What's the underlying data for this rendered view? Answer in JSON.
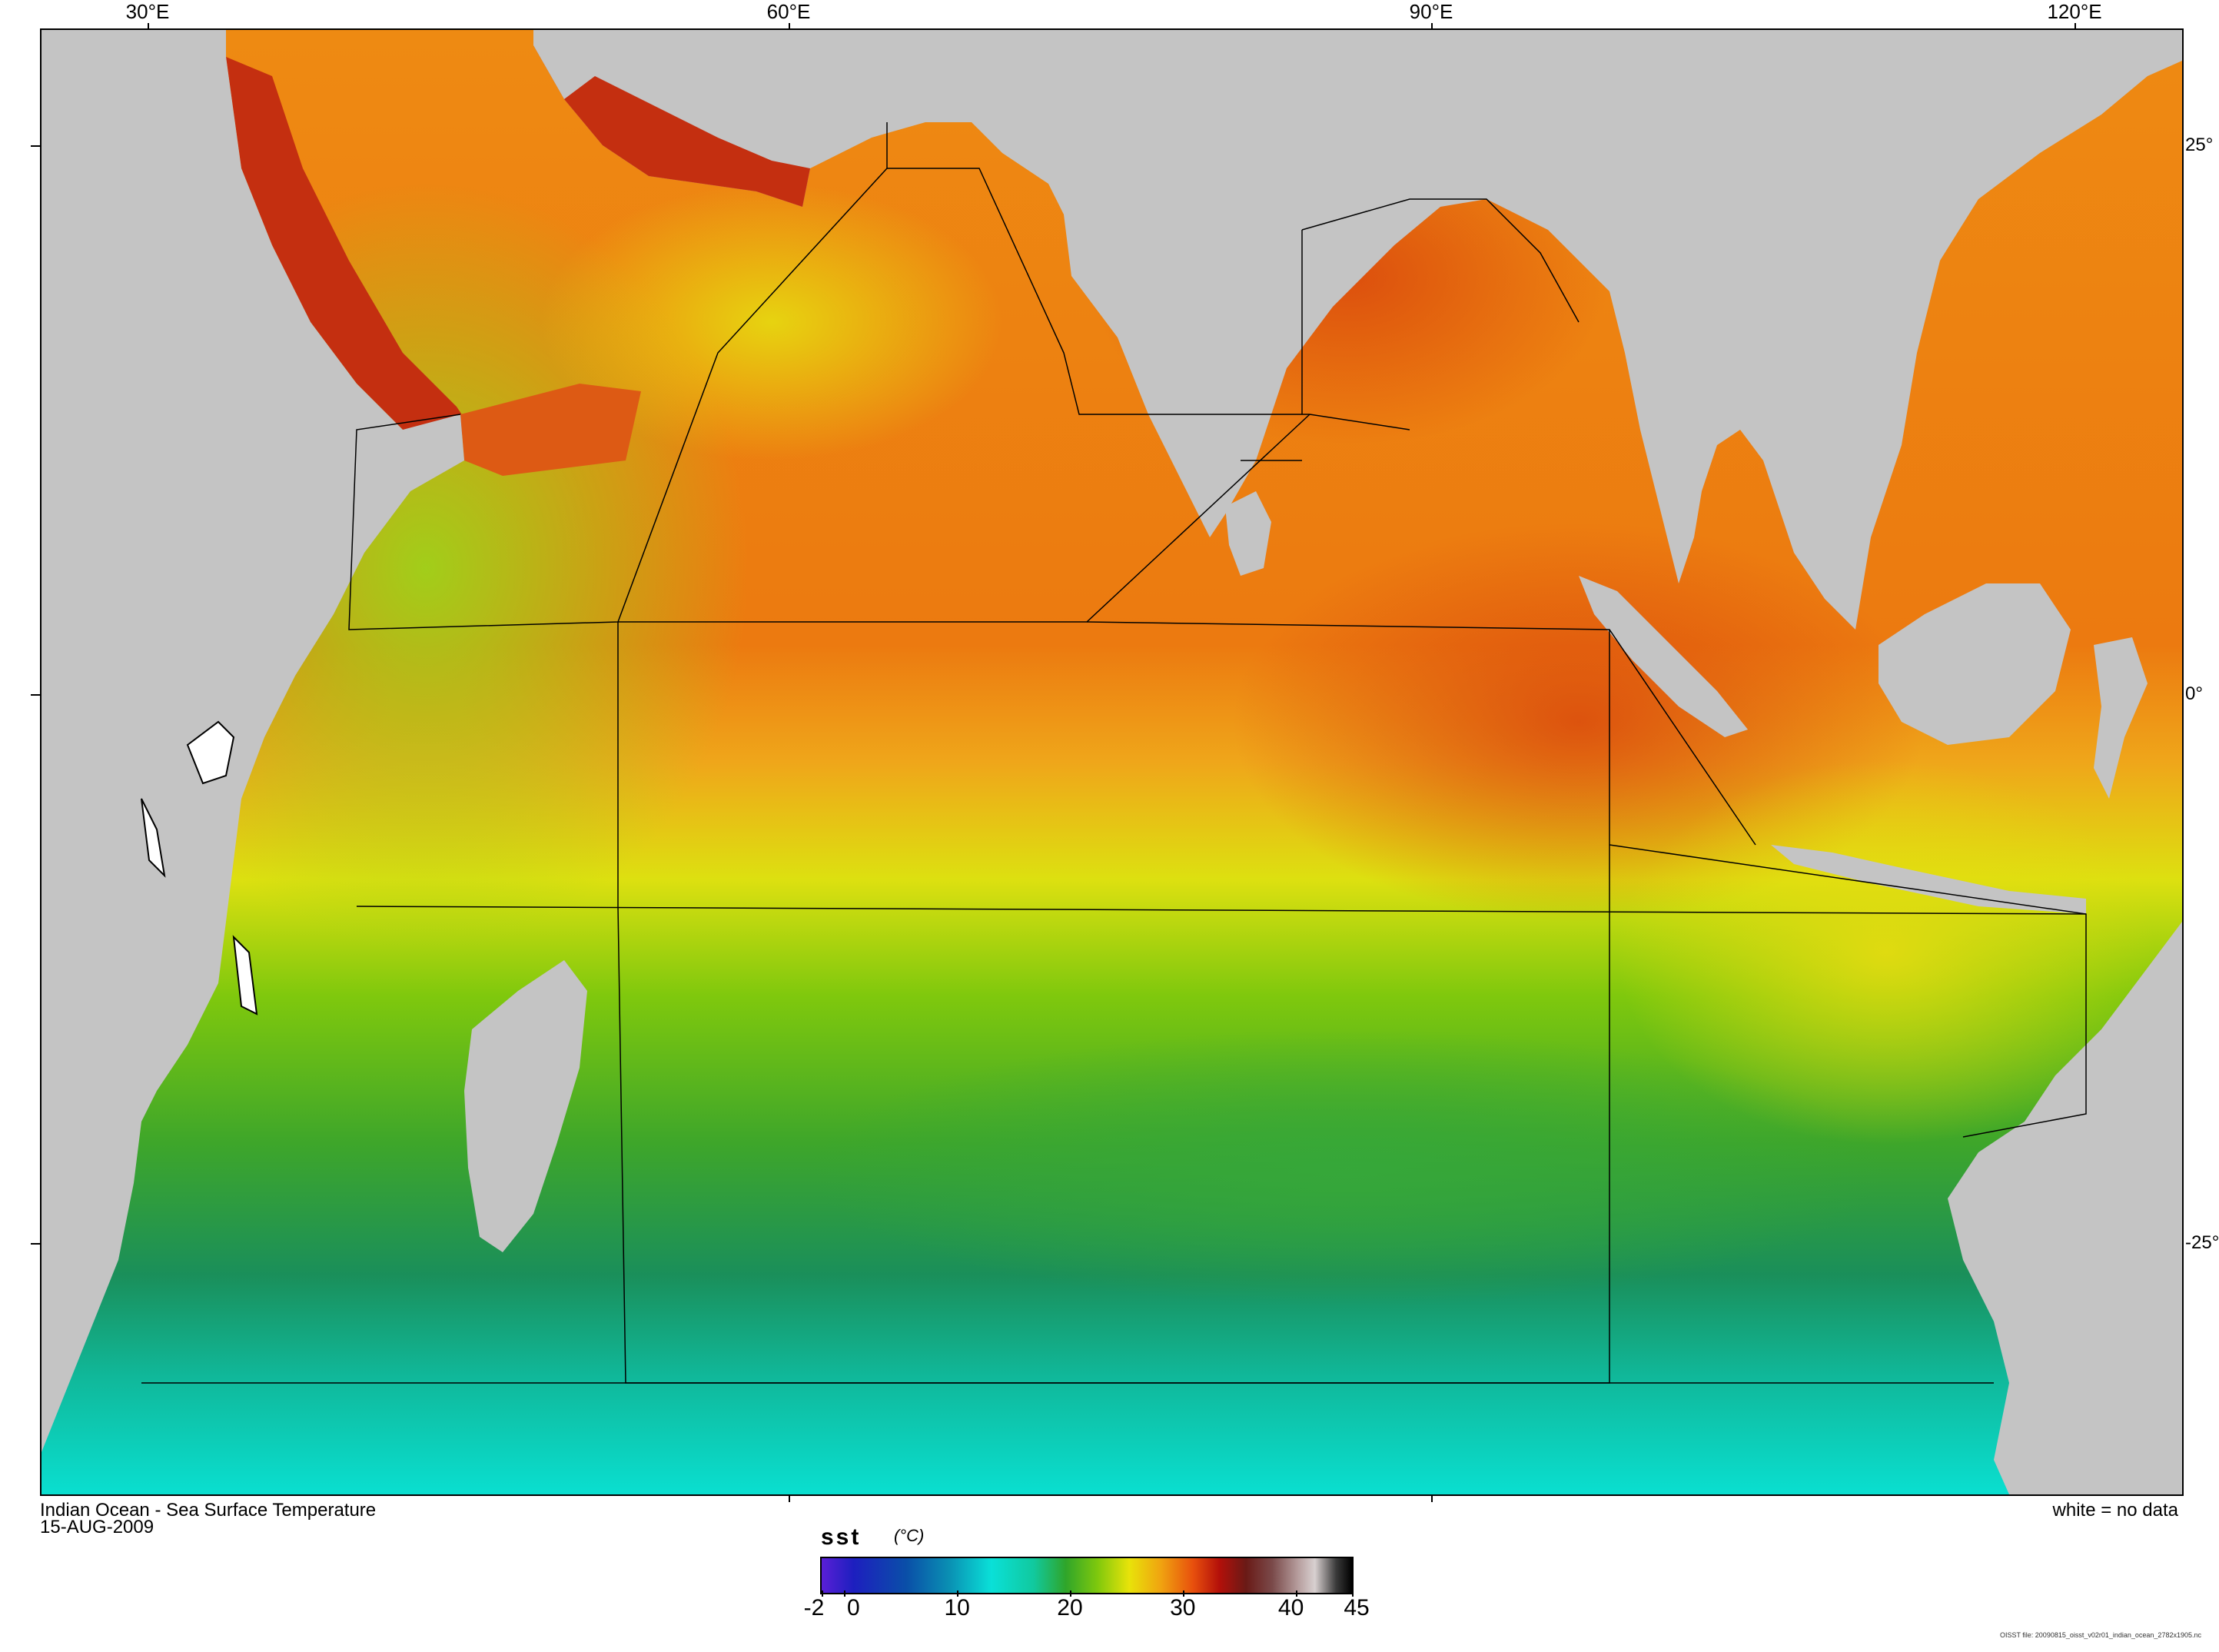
{
  "map": {
    "axis": {
      "longitude_labels": [
        "30°E",
        "60°E",
        "90°E",
        "120°E"
      ],
      "latitude_labels": [
        "25°",
        "0°",
        "-25°"
      ]
    },
    "caption_left": {
      "title": "Indian Ocean - Sea Surface Temperature",
      "date": "15-AUG-2009"
    },
    "caption_right": "white = no data",
    "colorbar": {
      "variable": "sst",
      "units": "(°C)",
      "tick_labels": [
        "-2",
        "0",
        "10",
        "20",
        "30",
        "40",
        "45"
      ],
      "range": [
        -2,
        45
      ]
    },
    "file_note": "OISST file: 20090815_oisst_v02r01_indian_ocean_2782x1905.nc",
    "colors": {
      "land": "#c4c4c4",
      "no_data": "#ffffff",
      "warm": "#e8500d",
      "hot": "#b3100a",
      "mild": "#e8e30a",
      "cool": "#2fa52a",
      "cold": "#0ae0d8"
    }
  }
}
